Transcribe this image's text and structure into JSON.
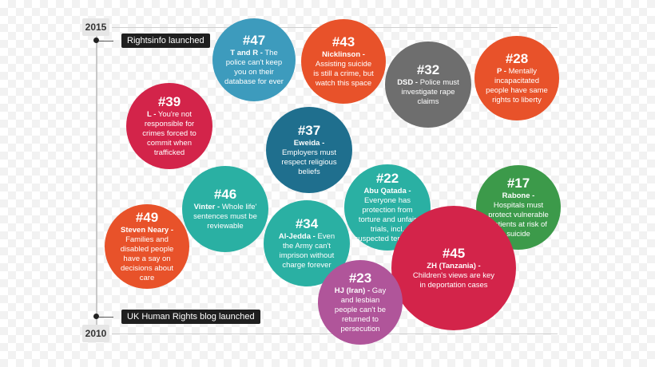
{
  "timeline": {
    "year_top": "2015",
    "year_bottom": "2010",
    "event_top": "Rightsinfo launched",
    "event_bottom": "UK Human Rights blog launched"
  },
  "bubbles": [
    {
      "num": "#47",
      "case": "T and R -",
      "desc": "The police can't keep you on their database for ever",
      "color": "#3d9bbd"
    },
    {
      "num": "#43",
      "case": "Nicklinson -",
      "desc": "Assisting suicide is still a crime, but watch this space",
      "color": "#e8522a"
    },
    {
      "num": "#32",
      "case": "DSD -",
      "desc": "Police must investigate rape claims",
      "color": "#6e6e6e"
    },
    {
      "num": "#28",
      "case": "P -",
      "desc": "Mentally incapacitated people have same rights to liberty",
      "color": "#e8522a"
    },
    {
      "num": "#39",
      "case": "L -",
      "desc": "You're not responsible for crimes forced to commit when trafficked",
      "color": "#d3244a"
    },
    {
      "num": "#37",
      "case": "Eweida -",
      "desc": "Employers must respect religious beliefs",
      "color": "#1f6f8e"
    },
    {
      "num": "#46",
      "case": "Vinter -",
      "desc": "Whole life' sentences must be reviewable",
      "color": "#2ab0a3"
    },
    {
      "num": "#22",
      "case": "Abu Qatada -",
      "desc": "Everyone has protection from torture and unfair trials, incl. suspected terrorists",
      "color": "#2ab0a3"
    },
    {
      "num": "#17",
      "case": "Rabone -",
      "desc": "Hospitals must protect vulnerable patients at risk of suicide",
      "color": "#3c9a4a"
    },
    {
      "num": "#49",
      "case": "Steven Neary -",
      "desc": "Families and disabled people have a say on decisions about care",
      "color": "#e8522a"
    },
    {
      "num": "#34",
      "case": "Al-Jedda -",
      "desc": "Even the Army can't imprison without charge forever",
      "color": "#2ab0a3"
    },
    {
      "num": "#45",
      "case": "ZH (Tanzania) -",
      "desc": "Children's views are key in deportation cases",
      "color": "#d3244a"
    },
    {
      "num": "#23",
      "case": "HJ (Iran) -",
      "desc": "Gay and lesbian people can't be returned to persecution",
      "color": "#b0559a"
    }
  ]
}
